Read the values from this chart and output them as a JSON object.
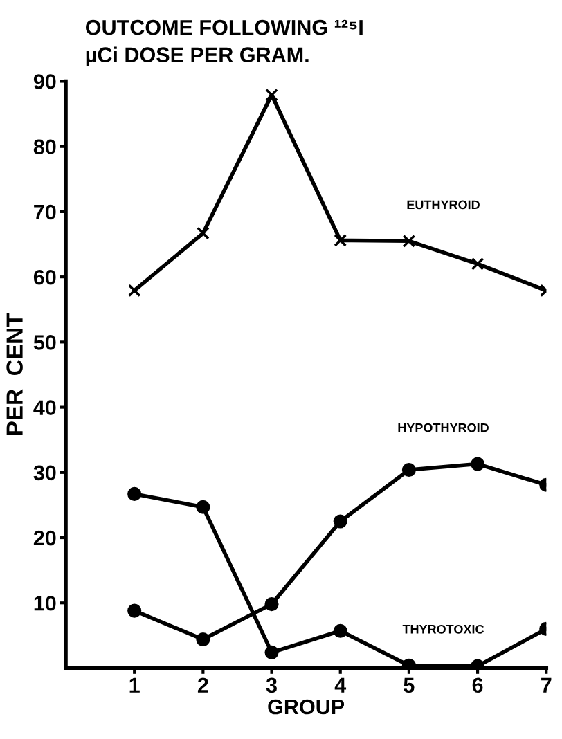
{
  "chart_data": {
    "type": "line",
    "title": "OUTCOME FOLLOWING ¹²⁵I\nµCi DOSE PER GRAM.",
    "xlabel": "GROUP",
    "ylabel": "PER  CENT",
    "x": [
      1,
      2,
      3,
      4,
      5,
      6,
      7
    ],
    "xlim": [
      0,
      7
    ],
    "xticks": [
      1,
      2,
      3,
      4,
      5,
      6,
      7
    ],
    "ylim": [
      0,
      90
    ],
    "yticks": [
      10,
      20,
      30,
      40,
      50,
      60,
      70,
      80,
      90
    ],
    "grid": false,
    "legend": false,
    "line_style": "solid",
    "series": [
      {
        "name": "EUTHYROID",
        "color": "#000000",
        "marker": "cross",
        "values": [
          57.9,
          66.7,
          87.9,
          65.6,
          65.5,
          62.0,
          57.9
        ]
      },
      {
        "name": "HYPOTHYROID",
        "color": "#000000",
        "marker": "circle",
        "values": [
          8.8,
          4.4,
          9.8,
          22.5,
          30.4,
          31.3,
          28.1
        ]
      },
      {
        "name": "THYROTOXIC",
        "color": "#000000",
        "marker": "circle",
        "values": [
          26.7,
          24.7,
          2.4,
          5.7,
          0.4,
          0.3,
          6.0
        ]
      }
    ]
  }
}
